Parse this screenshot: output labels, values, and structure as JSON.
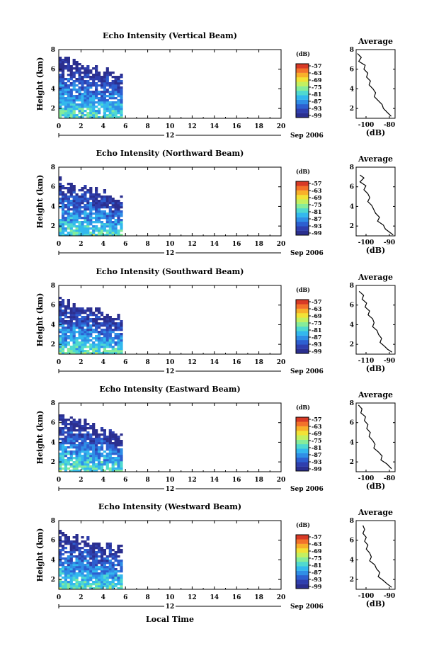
{
  "figure": {
    "xlabel": "Local Time",
    "date_label": "Sep 2006",
    "day_label": "12",
    "ylabel": "Height (km)",
    "x_ticks": [
      "0",
      "2",
      "4",
      "6",
      "8",
      "10",
      "12",
      "14",
      "16",
      "18",
      "20"
    ],
    "y_ticks": [
      "2",
      "4",
      "6",
      "8"
    ],
    "colorbar_unit": "(dB)",
    "colorbar_ticks": [
      "-57",
      "-63",
      "-69",
      "-75",
      "-81",
      "-87",
      "-93",
      "-99"
    ],
    "colorbar_colors": [
      "#2b2f8f",
      "#2f3fae",
      "#2d5fd0",
      "#2f8ee6",
      "#33b8ee",
      "#4fd9d0",
      "#86ec9a",
      "#c3f060",
      "#f2e236",
      "#f8b02a",
      "#f3722a",
      "#d83a26"
    ],
    "avg_title": "Average",
    "avg_xlabel": "(dB)"
  },
  "chart_data": [
    {
      "type": "heatmap",
      "title": "Echo Intensity (Vertical Beam)",
      "xlabel": "Local Time",
      "ylabel": "Height (km)",
      "xlim": [
        0,
        20
      ],
      "ylim": [
        1,
        8
      ],
      "data_x_range": [
        0,
        5.6
      ],
      "top_height": [
        7.2,
        5.6
      ],
      "colorbar": {
        "label": "(dB)",
        "min": -99,
        "max": -57
      },
      "average": {
        "title": "Average",
        "xlabel": "(dB)",
        "xlim": [
          -105,
          -75
        ],
        "xtick_labels": [
          "-100",
          "-80"
        ],
        "ylim": [
          1,
          8
        ],
        "yticks": [
          "2",
          "4",
          "6",
          "8"
        ],
        "x": [
          -104,
          -101,
          -103,
          -98,
          -99,
          -96,
          -97,
          -94,
          -95,
          -92,
          -90,
          -91,
          -88,
          -85,
          -84,
          -81,
          -78
        ],
        "y": [
          7.6,
          7.2,
          6.8,
          6.4,
          6.0,
          5.6,
          5.2,
          4.8,
          4.4,
          4.0,
          3.6,
          3.2,
          2.8,
          2.4,
          2.0,
          1.6,
          1.2
        ]
      }
    },
    {
      "type": "heatmap",
      "title": "Echo Intensity (Northward Beam)",
      "xlabel": "Local Time",
      "ylabel": "Height (km)",
      "xlim": [
        0,
        20
      ],
      "ylim": [
        1,
        8
      ],
      "data_x_range": [
        0,
        5.6
      ],
      "top_height": [
        6.8,
        5.0
      ],
      "colorbar": {
        "label": "(dB)",
        "min": -99,
        "max": -57
      },
      "average": {
        "title": "Average",
        "xlabel": "(dB)",
        "xlim": [
          -105,
          -85
        ],
        "xtick_labels": [
          "-100",
          "-90"
        ],
        "ylim": [
          1,
          8
        ],
        "yticks": [
          "2",
          "4",
          "6",
          "8"
        ],
        "x": [
          -103,
          -101,
          -103,
          -100,
          -101,
          -99,
          -98,
          -99,
          -97,
          -96,
          -95,
          -93,
          -94,
          -91,
          -90,
          -88,
          -86
        ],
        "y": [
          7.2,
          6.9,
          6.5,
          6.1,
          5.7,
          5.3,
          4.9,
          4.5,
          4.1,
          3.7,
          3.3,
          2.9,
          2.5,
          2.1,
          1.7,
          1.4,
          1.1
        ]
      }
    },
    {
      "type": "heatmap",
      "title": "Echo Intensity (Southward Beam)",
      "xlabel": "Local Time",
      "ylabel": "Height (km)",
      "xlim": [
        0,
        20
      ],
      "ylim": [
        1,
        8
      ],
      "data_x_range": [
        0,
        5.6
      ],
      "top_height": [
        6.6,
        4.8
      ],
      "colorbar": {
        "label": "(dB)",
        "min": -99,
        "max": -57
      },
      "average": {
        "title": "Average",
        "xlabel": "(dB)",
        "xlim": [
          -112,
          -86
        ],
        "xtick_labels": [
          "-110",
          "-90"
        ],
        "ylim": [
          1,
          8
        ],
        "yticks": [
          "2",
          "4",
          "6",
          "8"
        ],
        "x": [
          -110,
          -107,
          -108,
          -105,
          -106,
          -103,
          -104,
          -101,
          -100,
          -101,
          -98,
          -97,
          -95,
          -96,
          -93,
          -91,
          -88
        ],
        "y": [
          7.4,
          7.0,
          6.6,
          6.2,
          5.8,
          5.4,
          5.0,
          4.6,
          4.2,
          3.8,
          3.4,
          3.0,
          2.6,
          2.2,
          1.8,
          1.5,
          1.2
        ]
      }
    },
    {
      "type": "heatmap",
      "title": "Echo Intensity (Eastward Beam)",
      "xlabel": "Local Time",
      "ylabel": "Height (km)",
      "xlim": [
        0,
        20
      ],
      "ylim": [
        1,
        8
      ],
      "data_x_range": [
        0,
        5.6
      ],
      "top_height": [
        7.0,
        5.0
      ],
      "colorbar": {
        "label": "(dB)",
        "min": -99,
        "max": -57
      },
      "average": {
        "title": "Average",
        "xlabel": "(dB)",
        "xlim": [
          -108,
          -75
        ],
        "xtick_labels": [
          "-100",
          "-80"
        ],
        "ylim": [
          1,
          8
        ],
        "yticks": [
          "2",
          "4",
          "6",
          "8"
        ],
        "x": [
          -106,
          -103,
          -104,
          -100,
          -101,
          -98,
          -99,
          -96,
          -97,
          -94,
          -92,
          -93,
          -89,
          -86,
          -87,
          -82,
          -78
        ],
        "y": [
          7.8,
          7.4,
          7.0,
          6.6,
          6.2,
          5.8,
          5.4,
          5.0,
          4.6,
          4.2,
          3.8,
          3.4,
          3.0,
          2.6,
          2.2,
          1.8,
          1.3
        ]
      }
    },
    {
      "type": "heatmap",
      "title": "Echo Intensity (Westward Beam)",
      "xlabel": "Local Time",
      "ylabel": "Height (km)",
      "xlim": [
        0,
        20
      ],
      "ylim": [
        1,
        8
      ],
      "data_x_range": [
        0,
        5.6
      ],
      "top_height": [
        7.0,
        5.2
      ],
      "colorbar": {
        "label": "(dB)",
        "min": -99,
        "max": -57
      },
      "average": {
        "title": "Average",
        "xlabel": "(dB)",
        "xlim": [
          -108,
          -85
        ],
        "xtick_labels": [
          "-100",
          "-90"
        ],
        "ylim": [
          1,
          8
        ],
        "yticks": [
          "2",
          "4",
          "6",
          "8"
        ],
        "x": [
          -104,
          -103,
          -104,
          -102,
          -103,
          -101,
          -102,
          -100,
          -99,
          -100,
          -97,
          -96,
          -94,
          -95,
          -92,
          -90,
          -87
        ],
        "y": [
          7.5,
          7.1,
          6.7,
          6.3,
          5.9,
          5.5,
          5.1,
          4.7,
          4.3,
          3.9,
          3.5,
          3.1,
          2.7,
          2.3,
          1.9,
          1.6,
          1.2
        ]
      }
    }
  ]
}
